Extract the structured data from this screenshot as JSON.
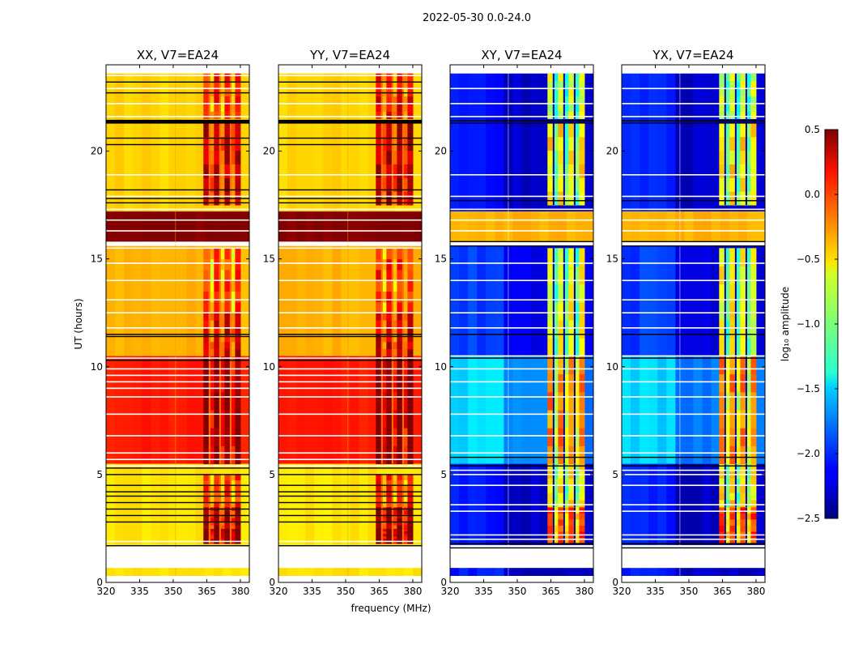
{
  "chart_data": {
    "type": "heatmap",
    "title": "2022-05-30 0.0-24.0",
    "xlabel": "frequency (MHz)",
    "ylabel": "UT (hours)",
    "xlim": [
      320,
      384
    ],
    "ylim": [
      0,
      24
    ],
    "xticks": [
      320,
      335,
      350,
      365,
      380
    ],
    "xtick_labels": [
      "320",
      "335",
      "350",
      "365",
      "380"
    ],
    "yticks": [
      0,
      5,
      10,
      15,
      20
    ],
    "ytick_labels": [
      "0",
      "5",
      "10",
      "15",
      "20"
    ],
    "colormap": "jet",
    "colorbar": {
      "label": "log₁₀ amplitude",
      "vmin": -2.5,
      "vmax": 0.5,
      "ticks": [
        0.5,
        0.0,
        -0.5,
        -1.0,
        -1.5,
        -2.0,
        -2.5
      ],
      "tick_labels": [
        "0.5",
        "0.0",
        "−0.5",
        "−1.0",
        "−1.5",
        "−2.0",
        "−2.5"
      ]
    },
    "flagged_rfi_band_mhz": [
      363.5,
      380
    ],
    "panels": [
      {
        "title": "XX, V7=EA24",
        "time_blocks": [
          {
            "t0": 0.3,
            "t1": 0.7,
            "level": -0.55
          },
          {
            "t0": 1.7,
            "t1": 5.5,
            "level": -0.55
          },
          {
            "t0": 5.5,
            "t1": 10.5,
            "level": 0.05
          },
          {
            "t0": 10.5,
            "t1": 15.6,
            "level": -0.4
          },
          {
            "t0": 15.8,
            "t1": 17.2,
            "level": 0.5
          },
          {
            "t0": 17.2,
            "t1": 23.6,
            "level": -0.5
          }
        ],
        "black_lines": [
          1.7,
          2.8,
          3.1,
          3.4,
          3.7,
          4.0,
          4.2,
          4.5,
          5.0,
          5.3,
          10.3,
          11.4,
          11.5,
          17.6,
          17.8,
          18.2,
          20.3,
          20.6,
          21.3,
          21.4,
          22.7,
          23.2
        ],
        "white_lines": [
          0.7,
          1.7,
          1.9,
          5.4,
          5.7,
          6.0,
          6.8,
          7.8,
          8.6,
          9.0,
          9.3,
          9.6,
          9.9,
          10.4,
          11.8,
          12.5,
          13.1,
          14.0,
          14.8,
          15.5,
          15.7,
          16.3,
          16.8,
          17.3,
          17.9,
          18.9,
          21.6,
          22.2,
          22.9,
          23.5
        ],
        "rfi_blocks": [
          [
            1.8,
            2.5,
            0.5
          ],
          [
            2.5,
            3.5,
            0.3
          ],
          [
            3.5,
            5.0,
            -0.15
          ],
          [
            5.5,
            10.5,
            0.4
          ],
          [
            10.5,
            12.5,
            0.1
          ],
          [
            12.5,
            15.5,
            -0.2
          ],
          [
            17.5,
            21.3,
            0.2
          ],
          [
            21.5,
            23.6,
            -0.1
          ]
        ]
      },
      {
        "title": "YY, V7=EA24",
        "time_blocks": [
          {
            "t0": 0.3,
            "t1": 0.7,
            "level": -0.55
          },
          {
            "t0": 1.7,
            "t1": 5.5,
            "level": -0.55
          },
          {
            "t0": 5.5,
            "t1": 10.5,
            "level": 0.05
          },
          {
            "t0": 10.5,
            "t1": 15.6,
            "level": -0.4
          },
          {
            "t0": 15.8,
            "t1": 17.2,
            "level": 0.5
          },
          {
            "t0": 17.2,
            "t1": 23.6,
            "level": -0.5
          }
        ],
        "black_lines": [
          1.7,
          2.8,
          3.1,
          3.4,
          3.7,
          4.0,
          4.2,
          4.5,
          5.0,
          5.3,
          10.3,
          11.4,
          11.5,
          17.6,
          17.8,
          18.2,
          20.3,
          20.6,
          21.3,
          21.4,
          22.7,
          23.2
        ],
        "white_lines": [
          0.7,
          1.7,
          1.9,
          5.4,
          5.7,
          6.0,
          6.8,
          7.8,
          8.6,
          9.0,
          9.3,
          9.6,
          9.9,
          10.4,
          11.8,
          12.5,
          13.1,
          14.0,
          14.8,
          15.5,
          15.7,
          16.3,
          16.8,
          17.3,
          17.9,
          18.9,
          21.6,
          22.2,
          22.9,
          23.5
        ],
        "rfi_blocks": [
          [
            1.8,
            2.5,
            0.5
          ],
          [
            2.5,
            3.5,
            0.3
          ],
          [
            3.5,
            5.0,
            -0.1
          ],
          [
            5.5,
            10.5,
            0.45
          ],
          [
            10.5,
            12.5,
            0.15
          ],
          [
            12.5,
            15.5,
            -0.1
          ],
          [
            17.5,
            21.3,
            0.25
          ],
          [
            21.5,
            23.6,
            0.0
          ]
        ]
      },
      {
        "title": "XY, V7=EA24",
        "time_blocks": [
          {
            "t0": 0.3,
            "t1": 0.7,
            "level": -2.3
          },
          {
            "t0": 1.7,
            "t1": 5.5,
            "level": -2.3
          },
          {
            "t0": 5.5,
            "t1": 10.5,
            "level": -1.75
          },
          {
            "t0": 10.5,
            "t1": 15.6,
            "level": -2.2
          },
          {
            "t0": 15.8,
            "t1": 17.2,
            "level": -0.4
          },
          {
            "t0": 17.2,
            "t1": 23.6,
            "level": -2.3
          }
        ],
        "black_lines": [
          1.6,
          1.8,
          5.4,
          5.8,
          10.4,
          11.5,
          15.6,
          15.8,
          17.7,
          21.3,
          21.4
        ],
        "white_lines": [
          0.7,
          1.7,
          2.0,
          2.2,
          3.3,
          3.6,
          4.5,
          5.0,
          5.2,
          6.0,
          6.8,
          7.8,
          8.6,
          9.3,
          9.9,
          10.5,
          11.8,
          12.5,
          13.1,
          14.0,
          14.8,
          16.3,
          16.8,
          17.3,
          17.9,
          18.9,
          21.6,
          22.2,
          22.9
        ],
        "rfi_blocks": [
          [
            1.8,
            3.5,
            -0.2
          ],
          [
            3.5,
            5.5,
            -0.7
          ],
          [
            5.5,
            10.5,
            -0.4
          ],
          [
            10.5,
            15.5,
            -0.8
          ],
          [
            17.5,
            21.3,
            -0.7
          ],
          [
            21.5,
            23.6,
            -0.9
          ]
        ]
      },
      {
        "title": "YX, V7=EA24",
        "time_blocks": [
          {
            "t0": 0.3,
            "t1": 0.7,
            "level": -2.3
          },
          {
            "t0": 1.7,
            "t1": 5.5,
            "level": -2.3
          },
          {
            "t0": 5.5,
            "t1": 10.5,
            "level": -1.75
          },
          {
            "t0": 10.5,
            "t1": 15.6,
            "level": -2.2
          },
          {
            "t0": 15.8,
            "t1": 17.2,
            "level": -0.4
          },
          {
            "t0": 17.2,
            "t1": 23.6,
            "level": -2.3
          }
        ],
        "black_lines": [
          1.6,
          1.8,
          5.4,
          5.8,
          10.4,
          11.5,
          15.6,
          15.8,
          17.7,
          21.3,
          21.4
        ],
        "white_lines": [
          0.7,
          1.7,
          2.0,
          2.2,
          3.3,
          3.6,
          4.5,
          5.0,
          5.2,
          6.0,
          6.8,
          7.8,
          8.6,
          9.3,
          9.9,
          10.5,
          11.8,
          12.5,
          13.1,
          14.0,
          14.8,
          16.3,
          16.8,
          17.3,
          17.9,
          18.9,
          21.6,
          22.2,
          22.9
        ],
        "rfi_blocks": [
          [
            1.8,
            3.5,
            -0.2
          ],
          [
            3.5,
            5.5,
            -0.7
          ],
          [
            5.5,
            10.5,
            -0.4
          ],
          [
            10.5,
            15.5,
            -0.8
          ],
          [
            17.5,
            21.3,
            -0.7
          ],
          [
            21.5,
            23.6,
            -0.9
          ]
        ]
      }
    ]
  }
}
